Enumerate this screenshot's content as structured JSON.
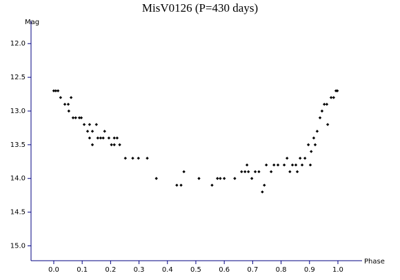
{
  "chart_data": {
    "type": "scatter",
    "title": "MisV0126 (P=430 days)",
    "x_label": "Phase",
    "y_label": "Mag",
    "x": [
      0,
      0.007,
      0.015,
      0.024,
      0.039,
      0.051,
      0.053,
      0.061,
      0.068,
      0.077,
      0.09,
      0.097,
      0.107,
      0.119,
      0.126,
      0.126,
      0.136,
      0.136,
      0.15,
      0.155,
      0.165,
      0.174,
      0.179,
      0.194,
      0.203,
      0.213,
      0.213,
      0.223,
      0.232,
      0.252,
      0.278,
      0.298,
      0.329,
      0.361,
      0.433,
      0.448,
      0.458,
      0.511,
      0.557,
      0.576,
      0.586,
      0.6,
      0.637,
      0.661,
      0.673,
      0.68,
      0.685,
      0.697,
      0.709,
      0.722,
      0.734,
      0.741,
      0.748,
      0.765,
      0.775,
      0.789,
      0.811,
      0.821,
      0.831,
      0.84,
      0.852,
      0.857,
      0.867,
      0.874,
      0.884,
      0.896,
      0.903,
      0.906,
      0.915,
      0.92,
      0.927,
      0.937,
      0.944,
      0.952,
      0.961,
      0.964,
      0.976,
      0.985,
      0.993,
      0.998
    ],
    "y": [
      12.7,
      12.7,
      12.7,
      12.8,
      12.9,
      12.9,
      13.0,
      12.8,
      13.1,
      13.1,
      13.1,
      13.1,
      13.2,
      13.3,
      13.2,
      13.4,
      13.3,
      13.5,
      13.2,
      13.4,
      13.4,
      13.4,
      13.3,
      13.4,
      13.5,
      13.4,
      13.5,
      13.4,
      13.5,
      13.7,
      13.7,
      13.7,
      13.7,
      14.0,
      14.1,
      14.1,
      13.9,
      14.0,
      14.1,
      14.0,
      14.0,
      14.0,
      14.0,
      13.9,
      13.9,
      13.8,
      13.9,
      14.0,
      13.9,
      13.9,
      14.2,
      14.1,
      13.8,
      13.9,
      13.8,
      13.8,
      13.8,
      13.7,
      13.9,
      13.8,
      13.8,
      13.9,
      13.7,
      13.8,
      13.7,
      13.5,
      13.8,
      13.6,
      13.4,
      13.5,
      13.3,
      13.1,
      13.0,
      12.9,
      12.9,
      13.2,
      12.8,
      12.8,
      12.7,
      12.7
    ],
    "color": "#000000",
    "xlim": [
      -0.08,
      1.085
    ],
    "xticks": [
      {
        "value": 0,
        "label": "0.0"
      },
      0.1,
      0.2,
      0.3,
      0.4,
      0.5,
      0.6,
      0.7,
      0.8,
      0.9,
      {
        "value": 1,
        "label": "1.0"
      }
    ],
    "ylim": [
      15.22,
      11.66
    ],
    "yticks": [
      {
        "value": 12,
        "label": "12.0"
      },
      12.5,
      {
        "value": 13,
        "label": "13.0"
      },
      13.5,
      {
        "value": 14,
        "label": "14.0"
      },
      14.5,
      {
        "value": 15,
        "label": "15.0"
      }
    ]
  }
}
